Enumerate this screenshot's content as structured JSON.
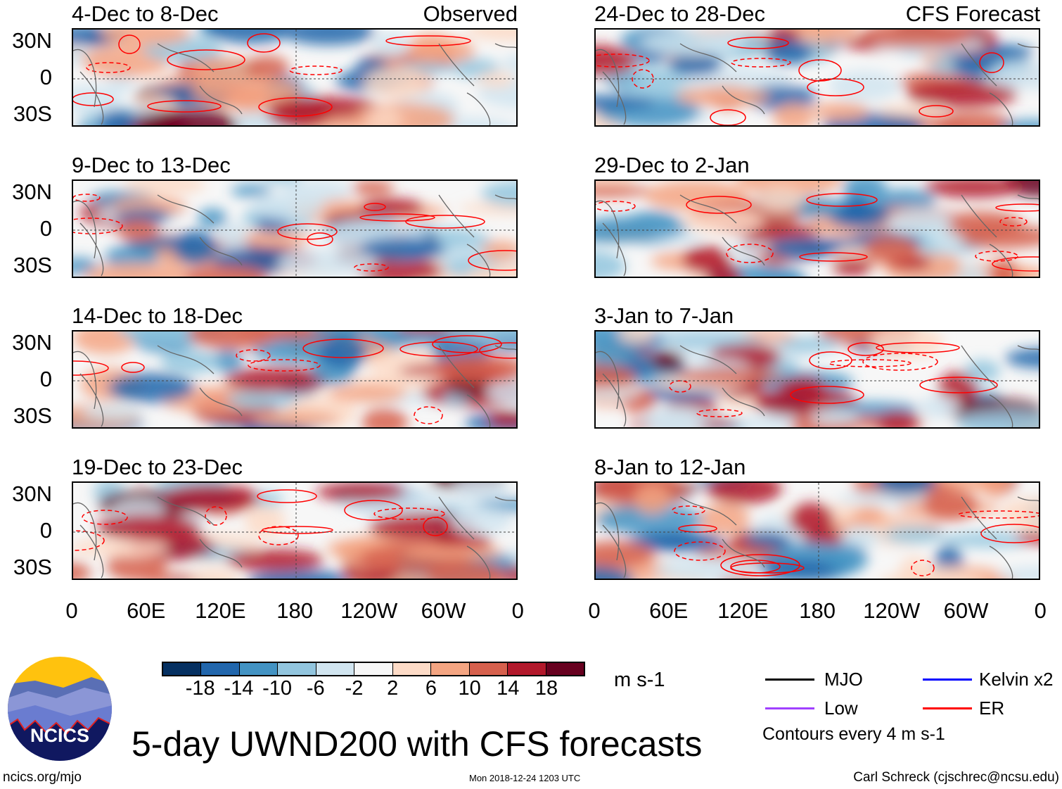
{
  "figure_title": "5-day UWND200 with CFS forecasts",
  "left_column_label": "Observed",
  "right_column_label": "CFS Forecast",
  "panels_observed": [
    {
      "title": "4-Dec to 8-Dec"
    },
    {
      "title": "9-Dec to 13-Dec"
    },
    {
      "title": "14-Dec to 18-Dec"
    },
    {
      "title": "19-Dec to 23-Dec"
    }
  ],
  "panels_forecast": [
    {
      "title": "24-Dec to 28-Dec"
    },
    {
      "title": "29-Dec to 2-Jan"
    },
    {
      "title": "3-Jan to 7-Jan"
    },
    {
      "title": "8-Jan to 12-Jan"
    }
  ],
  "lat_labels": [
    "30N",
    "0",
    "30S"
  ],
  "lon_labels": [
    "0",
    "60E",
    "120E",
    "180",
    "120W",
    "60W",
    "0"
  ],
  "colorbar": {
    "labels": [
      "-18",
      "-14",
      "-10",
      "-6",
      "-2",
      "2",
      "6",
      "10",
      "14",
      "18"
    ],
    "colors": [
      "#053061",
      "#2166ac",
      "#4393c3",
      "#92c5de",
      "#d1e5f0",
      "#f7f7f7",
      "#fddbc7",
      "#f4a582",
      "#d6604d",
      "#b2182b",
      "#67001f"
    ],
    "units": "m s-1"
  },
  "legend": {
    "items": [
      {
        "label": "MJO",
        "color": "#000000"
      },
      {
        "label": "Kelvin x2",
        "color": "#0000ff"
      },
      {
        "label": "Low",
        "color": "#a040ff"
      },
      {
        "label": "ER",
        "color": "#ff0000"
      }
    ],
    "note": "Contours every 4 m s-1"
  },
  "logo": {
    "text": "NCICS"
  },
  "footer": {
    "url": "ncics.org/mjo",
    "timestamp": "Mon 2018-12-24 1203 UTC",
    "credit": "Carl Schreck (cjschrec@ncsu.edu)"
  }
}
